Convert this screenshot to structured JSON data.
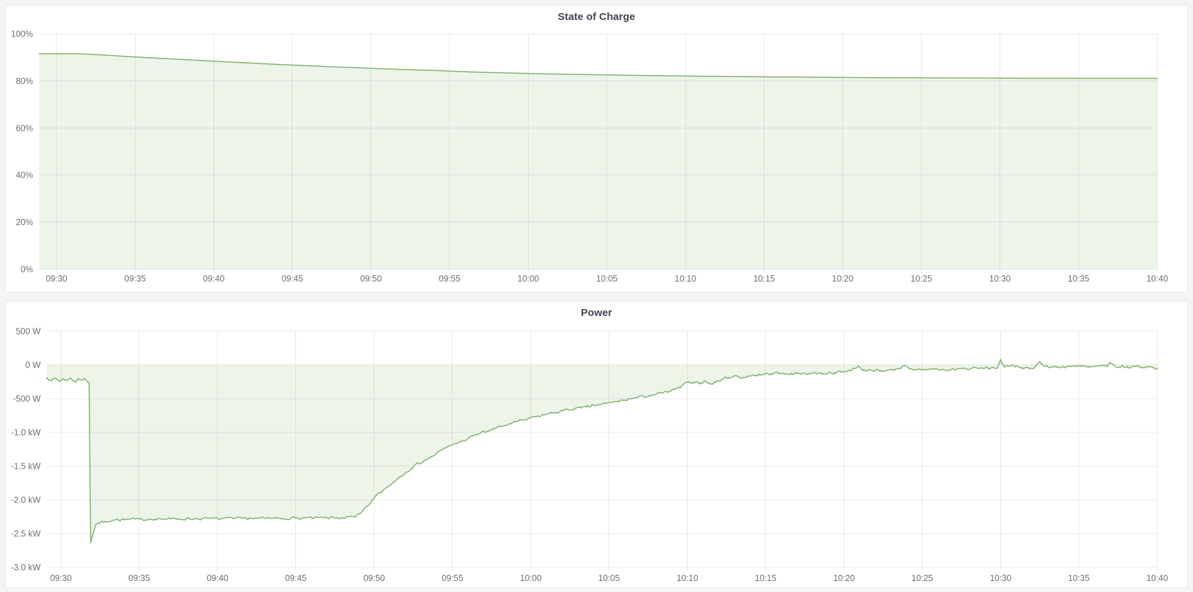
{
  "page": {
    "background": "#f4f5f7",
    "panel_border": "#e4e7eb"
  },
  "panels": [
    {
      "title": "State of Charge"
    },
    {
      "title": "Power"
    }
  ],
  "chart_data": [
    {
      "type": "area",
      "title": "State of Charge",
      "unit": "%",
      "line_color": "#7EB26D",
      "fill_color": "#7EB26D",
      "fill_opacity": 0.14,
      "grid": true,
      "legend_position": "none",
      "x_range_minutes": [
        -1.1,
        70
      ],
      "x_axis_start_label": "09:30",
      "x_ticks": [
        {
          "t": 0,
          "label": "09:30"
        },
        {
          "t": 5,
          "label": "09:35"
        },
        {
          "t": 10,
          "label": "09:40"
        },
        {
          "t": 15,
          "label": "09:45"
        },
        {
          "t": 20,
          "label": "09:50"
        },
        {
          "t": 25,
          "label": "09:55"
        },
        {
          "t": 30,
          "label": "10:00"
        },
        {
          "t": 35,
          "label": "10:05"
        },
        {
          "t": 40,
          "label": "10:10"
        },
        {
          "t": 45,
          "label": "10:15"
        },
        {
          "t": 50,
          "label": "10:20"
        },
        {
          "t": 55,
          "label": "10:25"
        },
        {
          "t": 60,
          "label": "10:30"
        },
        {
          "t": 65,
          "label": "10:35"
        },
        {
          "t": 70,
          "label": "10:40"
        }
      ],
      "y_range": [
        0,
        100
      ],
      "y_ticks": [
        {
          "v": 100,
          "label": "100%"
        },
        {
          "v": 80,
          "label": "80%"
        },
        {
          "v": 60,
          "label": "60%"
        },
        {
          "v": 40,
          "label": "40%"
        },
        {
          "v": 20,
          "label": "20%"
        },
        {
          "v": 0,
          "label": "0%"
        }
      ],
      "baseline": 0,
      "noise": 0,
      "points": [
        [
          -1.1,
          91.5
        ],
        [
          0,
          91.5
        ],
        [
          0.8,
          91.5
        ],
        [
          1.6,
          91.45
        ],
        [
          2.5,
          91.15
        ],
        [
          3.5,
          90.75
        ],
        [
          5,
          90.15
        ],
        [
          6.5,
          89.6
        ],
        [
          8,
          89.05
        ],
        [
          9.5,
          88.5
        ],
        [
          11,
          88.0
        ],
        [
          12.5,
          87.5
        ],
        [
          14,
          87.0
        ],
        [
          15.5,
          86.55
        ],
        [
          17,
          86.1
        ],
        [
          18.5,
          85.7
        ],
        [
          20,
          85.3
        ],
        [
          21.5,
          84.95
        ],
        [
          23,
          84.6
        ],
        [
          24.5,
          84.3
        ],
        [
          26,
          83.85
        ],
        [
          27.5,
          83.55
        ],
        [
          29,
          83.3
        ],
        [
          30.5,
          83.05
        ],
        [
          32,
          82.85
        ],
        [
          33.5,
          82.65
        ],
        [
          35,
          82.5
        ],
        [
          36.5,
          82.35
        ],
        [
          38,
          82.2
        ],
        [
          39.5,
          82.1
        ],
        [
          41,
          81.95
        ],
        [
          42.5,
          81.85
        ],
        [
          44,
          81.75
        ],
        [
          45.5,
          81.65
        ],
        [
          47,
          81.6
        ],
        [
          48.5,
          81.5
        ],
        [
          50,
          81.45
        ],
        [
          52,
          81.35
        ],
        [
          54,
          81.3
        ],
        [
          56,
          81.25
        ],
        [
          58,
          81.2
        ],
        [
          60,
          81.15
        ],
        [
          62,
          81.1
        ],
        [
          64,
          81.1
        ],
        [
          66,
          81.08
        ],
        [
          68,
          81.06
        ],
        [
          70,
          81.05
        ]
      ]
    },
    {
      "type": "area",
      "title": "Power",
      "unit": "W",
      "line_color": "#7EB26D",
      "fill_color": "#7EB26D",
      "fill_opacity": 0.14,
      "grid": true,
      "legend_position": "none",
      "x_range_minutes": [
        -0.9,
        70
      ],
      "x_axis_start_label": "09:30",
      "x_ticks": [
        {
          "t": 0,
          "label": "09:30"
        },
        {
          "t": 5,
          "label": "09:35"
        },
        {
          "t": 10,
          "label": "09:40"
        },
        {
          "t": 15,
          "label": "09:45"
        },
        {
          "t": 20,
          "label": "09:50"
        },
        {
          "t": 25,
          "label": "09:55"
        },
        {
          "t": 30,
          "label": "10:00"
        },
        {
          "t": 35,
          "label": "10:05"
        },
        {
          "t": 40,
          "label": "10:10"
        },
        {
          "t": 45,
          "label": "10:15"
        },
        {
          "t": 50,
          "label": "10:20"
        },
        {
          "t": 55,
          "label": "10:25"
        },
        {
          "t": 60,
          "label": "10:30"
        },
        {
          "t": 65,
          "label": "10:35"
        },
        {
          "t": 70,
          "label": "10:40"
        }
      ],
      "y_range": [
        -3000,
        500
      ],
      "y_ticks": [
        {
          "v": 500,
          "label": "500 W"
        },
        {
          "v": 0,
          "label": "0 W"
        },
        {
          "v": -500,
          "label": "-500 W"
        },
        {
          "v": -1000,
          "label": "-1.0 kW"
        },
        {
          "v": -1500,
          "label": "-1.5 kW"
        },
        {
          "v": -2000,
          "label": "-2.0 kW"
        },
        {
          "v": -2500,
          "label": "-2.5 kW"
        },
        {
          "v": -3000,
          "label": "-3.0 kW"
        }
      ],
      "baseline": 0,
      "noise": 20,
      "points": [
        [
          -0.9,
          -190
        ],
        [
          -0.6,
          -235
        ],
        [
          -0.35,
          -200
        ],
        [
          -0.1,
          -245
        ],
        [
          0.15,
          -205
        ],
        [
          0.4,
          -230
        ],
        [
          0.65,
          -200
        ],
        [
          0.9,
          -250
        ],
        [
          1.1,
          -215
        ],
        [
          1.3,
          -225
        ],
        [
          1.5,
          -200
        ],
        [
          1.65,
          -240
        ],
        [
          1.8,
          -262
        ],
        [
          1.9,
          -2640
        ],
        [
          2.05,
          -2500
        ],
        [
          2.2,
          -2390
        ],
        [
          2.4,
          -2345
        ],
        [
          2.8,
          -2320
        ],
        [
          3.3,
          -2305
        ],
        [
          4,
          -2295
        ],
        [
          5,
          -2290
        ],
        [
          6,
          -2285
        ],
        [
          7,
          -2285
        ],
        [
          8,
          -2282
        ],
        [
          9,
          -2280
        ],
        [
          10,
          -2280
        ],
        [
          11,
          -2278
        ],
        [
          12,
          -2276
        ],
        [
          13,
          -2277
        ],
        [
          14,
          -2274
        ],
        [
          15,
          -2273
        ],
        [
          16,
          -2271
        ],
        [
          17,
          -2270
        ],
        [
          18,
          -2266
        ],
        [
          18.8,
          -2256
        ],
        [
          19.2,
          -2190
        ],
        [
          19.6,
          -2090
        ],
        [
          20,
          -1975
        ],
        [
          20.4,
          -1890
        ],
        [
          20.8,
          -1820
        ],
        [
          21.2,
          -1745
        ],
        [
          21.6,
          -1665
        ],
        [
          22,
          -1595
        ],
        [
          22.4,
          -1530
        ],
        [
          22.8,
          -1465
        ],
        [
          23.2,
          -1415
        ],
        [
          23.6,
          -1375
        ],
        [
          24,
          -1310
        ],
        [
          24.4,
          -1255
        ],
        [
          24.8,
          -1205
        ],
        [
          25.2,
          -1165
        ],
        [
          25.6,
          -1135
        ],
        [
          26,
          -1090
        ],
        [
          26.4,
          -1050
        ],
        [
          26.8,
          -1010
        ],
        [
          27.2,
          -985
        ],
        [
          27.6,
          -955
        ],
        [
          28,
          -920
        ],
        [
          28.4,
          -895
        ],
        [
          28.8,
          -862
        ],
        [
          29.2,
          -838
        ],
        [
          29.6,
          -820
        ],
        [
          30,
          -788
        ],
        [
          30.4,
          -765
        ],
        [
          30.8,
          -742
        ],
        [
          31.2,
          -722
        ],
        [
          31.6,
          -705
        ],
        [
          32,
          -682
        ],
        [
          32.4,
          -668
        ],
        [
          32.8,
          -648
        ],
        [
          33.2,
          -640
        ],
        [
          33.6,
          -623
        ],
        [
          34,
          -603
        ],
        [
          34.4,
          -588
        ],
        [
          34.8,
          -574
        ],
        [
          35.2,
          -558
        ],
        [
          35.6,
          -542
        ],
        [
          36,
          -522
        ],
        [
          36.4,
          -504
        ],
        [
          36.8,
          -486
        ],
        [
          37.2,
          -468
        ],
        [
          37.6,
          -452
        ],
        [
          38,
          -438
        ],
        [
          38.4,
          -418
        ],
        [
          38.8,
          -398
        ],
        [
          39.2,
          -368
        ],
        [
          39.6,
          -328
        ],
        [
          40,
          -262
        ],
        [
          40.4,
          -255
        ],
        [
          40.8,
          -268
        ],
        [
          41.2,
          -248
        ],
        [
          41.5,
          -288
        ],
        [
          41.8,
          -258
        ],
        [
          42.2,
          -215
        ],
        [
          42.6,
          -188
        ],
        [
          43,
          -162
        ],
        [
          43.4,
          -196
        ],
        [
          43.8,
          -172
        ],
        [
          44.2,
          -155
        ],
        [
          44.6,
          -148
        ],
        [
          45,
          -138
        ],
        [
          45.4,
          -128
        ],
        [
          45.8,
          -122
        ],
        [
          46.2,
          -138
        ],
        [
          46.6,
          -126
        ],
        [
          47,
          -133
        ],
        [
          47.4,
          -122
        ],
        [
          47.8,
          -130
        ],
        [
          48.2,
          -121
        ],
        [
          48.6,
          -128
        ],
        [
          49,
          -122
        ],
        [
          49.4,
          -116
        ],
        [
          49.8,
          -108
        ],
        [
          50.2,
          -98
        ],
        [
          50.6,
          -55
        ],
        [
          50.9,
          -18
        ],
        [
          51.2,
          -88
        ],
        [
          51.6,
          -72
        ],
        [
          52,
          -80
        ],
        [
          52.4,
          -86
        ],
        [
          52.8,
          -78
        ],
        [
          53.2,
          -85
        ],
        [
          53.6,
          -58
        ],
        [
          53.9,
          -12
        ],
        [
          54.2,
          -62
        ],
        [
          54.6,
          -72
        ],
        [
          55,
          -64
        ],
        [
          55.4,
          -70
        ],
        [
          55.8,
          -62
        ],
        [
          56.2,
          -72
        ],
        [
          56.6,
          -84
        ],
        [
          57,
          -66
        ],
        [
          57.4,
          -54
        ],
        [
          57.8,
          -58
        ],
        [
          58.2,
          -50
        ],
        [
          58.6,
          -54
        ],
        [
          59,
          -48
        ],
        [
          59.4,
          -46
        ],
        [
          59.8,
          -44
        ],
        [
          60,
          82
        ],
        [
          60.25,
          -38
        ],
        [
          60.6,
          -22
        ],
        [
          61,
          -18
        ],
        [
          61.4,
          -42
        ],
        [
          61.8,
          -52
        ],
        [
          62.2,
          -30
        ],
        [
          62.5,
          48
        ],
        [
          62.8,
          -24
        ],
        [
          63.2,
          -38
        ],
        [
          63.6,
          -28
        ],
        [
          64,
          -32
        ],
        [
          64.4,
          -22
        ],
        [
          64.8,
          -28
        ],
        [
          65.2,
          -18
        ],
        [
          65.6,
          -36
        ],
        [
          66,
          -28
        ],
        [
          66.4,
          -16
        ],
        [
          66.8,
          -30
        ],
        [
          67,
          32
        ],
        [
          67.3,
          -22
        ],
        [
          67.7,
          -28
        ],
        [
          68.1,
          -36
        ],
        [
          68.5,
          -24
        ],
        [
          68.9,
          -30
        ],
        [
          69.3,
          -34
        ],
        [
          69.7,
          -36
        ],
        [
          70,
          -52
        ]
      ]
    }
  ]
}
